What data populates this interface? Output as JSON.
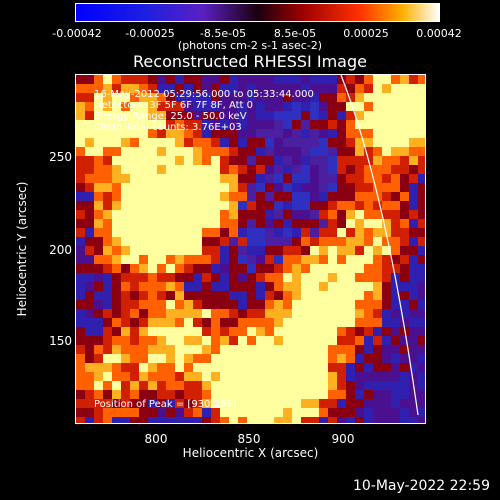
{
  "colorbar": {
    "ticks": [
      "-0.00042",
      "-0.00025",
      "-8.5e-05",
      "8.5e-05",
      "0.00025",
      "0.00042"
    ],
    "units": "(photons cm-2 s-1 asec-2)"
  },
  "title": "Reconstructed RHESSI Image",
  "info": {
    "line1": "16-May-2012 05:29:56.000 to 05:33:44.000",
    "line2": "Detectors: 3F 5F 6F 7F 8F, Att 0",
    "line3": "Energy Range: 25.0 - 50.0 keV",
    "line4": "Clean    Total counts: 3.76E+03",
    "peak": "Position of Peak = [930,291]"
  },
  "axes": {
    "xlabel": "Heliocentric X (arcsec)",
    "ylabel": "Heliocentric Y (arcsec)",
    "xticks": [
      "800",
      "850",
      "900"
    ],
    "yticks": [
      "250",
      "200",
      "150"
    ]
  },
  "timestamp": "10-May-2022 22:59",
  "colors": {
    "background": "#000000",
    "text": "#ffffff"
  }
}
